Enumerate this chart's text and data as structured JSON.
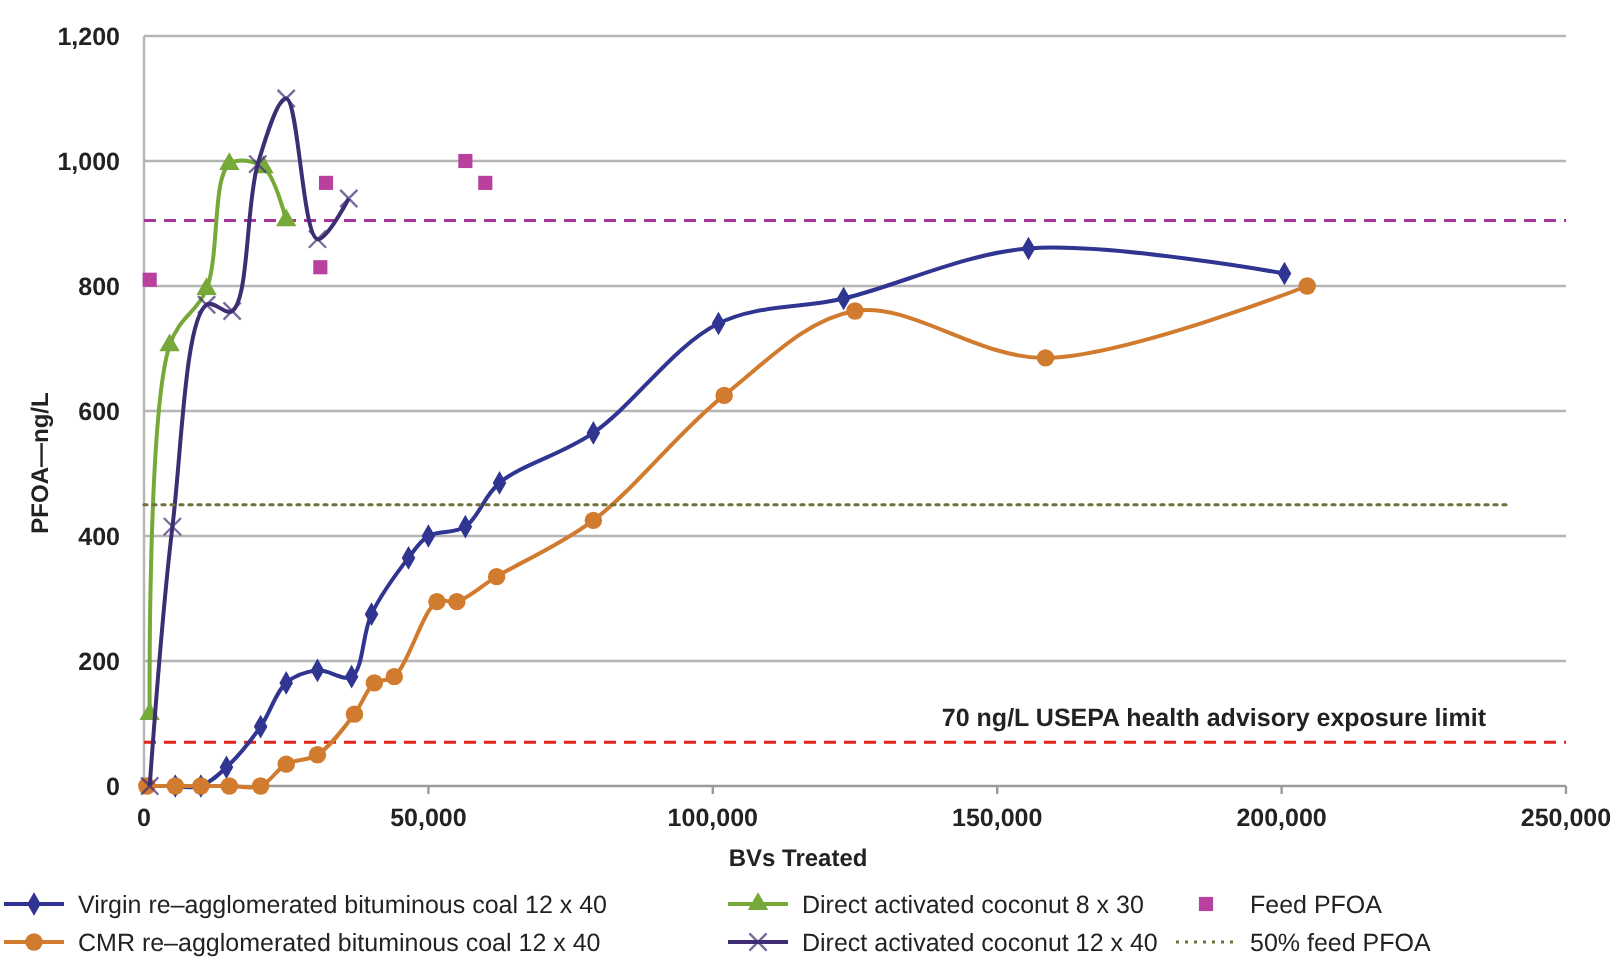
{
  "chart_data": {
    "type": "line",
    "xlabel": "BVs Treated",
    "ylabel": "PFOA—ng/L",
    "xlim": [
      0,
      250000
    ],
    "ylim": [
      0,
      1200
    ],
    "xticks": [
      0,
      {
        "value": 50000,
        "label": "50,000"
      },
      {
        "value": 100000,
        "label": "100,000"
      },
      {
        "value": 150000,
        "label": "150,000"
      },
      {
        "value": 200000,
        "label": "200,000"
      },
      {
        "value": 250000,
        "label": "250,000"
      }
    ],
    "yticks": [
      0,
      200,
      400,
      600,
      800,
      {
        "value": 1000,
        "label": "1,000"
      },
      {
        "value": 1200,
        "label": "1,200"
      }
    ],
    "grid": "y",
    "legend": "bottom",
    "ref_lines": [
      {
        "axis": "y",
        "value": 905,
        "color": "#a8359a",
        "line_style": "dashed"
      },
      {
        "axis": "y",
        "value": 70,
        "label": "70 ng/L USEPA health advisory exposure limit",
        "color": "#e2231a",
        "line_style": "dashed"
      }
    ],
    "series": [
      {
        "name": "Virgin re–agglomerated bituminous coal 12 x 40",
        "color": "#2f3590",
        "marker": "diamond",
        "line_style": "solid",
        "x": [
          5500,
          10000,
          14500,
          20500,
          25000,
          30500,
          36500,
          40000,
          46500,
          50000,
          56500,
          62500,
          79000,
          101000,
          123000,
          155500,
          200500
        ],
        "values": [
          0,
          0,
          30,
          95,
          165,
          185,
          175,
          275,
          365,
          400,
          415,
          485,
          565,
          740,
          780,
          860,
          820
        ]
      },
      {
        "name": "CMR re–agglomerated bituminous coal 12 x 40",
        "color": "#d17b2f",
        "marker": "circle",
        "line_style": "solid",
        "x": [
          500,
          5500,
          10000,
          15000,
          20500,
          25000,
          30500,
          37000,
          40500,
          44000,
          51500,
          55000,
          62000,
          79000,
          102000,
          125000,
          158500,
          204500
        ],
        "values": [
          0,
          0,
          0,
          0,
          0,
          35,
          50,
          115,
          165,
          175,
          295,
          295,
          335,
          425,
          625,
          760,
          685,
          800
        ]
      },
      {
        "name": "Direct activated coconut 8 x 30",
        "color": "#76a83a",
        "marker": "triangle",
        "line_style": "solid",
        "x": [
          1000,
          4500,
          11000,
          15000,
          21000,
          25000
        ],
        "values": [
          115,
          705,
          795,
          995,
          990,
          905
        ]
      },
      {
        "name": "Direct activated coconut 12 x 40",
        "color": "#3f2d73",
        "marker": "cross",
        "line_style": "solid",
        "x": [
          1000,
          5000,
          11000,
          15500,
          20000,
          25000,
          30500,
          36000
        ],
        "values": [
          0,
          415,
          770,
          760,
          995,
          1100,
          875,
          940
        ]
      },
      {
        "name": "Feed PFOA",
        "type": "scatter",
        "color": "#b9409f",
        "marker": "square",
        "x": [
          1000,
          31000,
          32000,
          56500,
          60000
        ],
        "values": [
          810,
          830,
          965,
          1000,
          965
        ]
      },
      {
        "name": "50% feed PFOA",
        "color": "#6f6f3a",
        "marker": "none",
        "line_style": "dotted",
        "x": [
          0,
          240000
        ],
        "values": [
          450,
          450
        ]
      }
    ]
  }
}
